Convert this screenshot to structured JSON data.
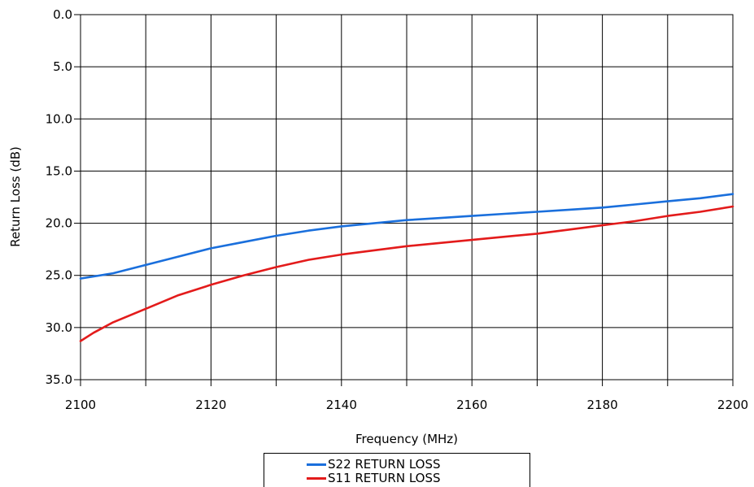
{
  "chart_data": {
    "type": "line",
    "title": "",
    "xlabel": "Frequency (MHz)",
    "ylabel": "Return Loss (dB)",
    "xlim": [
      2100,
      2200
    ],
    "ylim": [
      0,
      35
    ],
    "y_inverted": true,
    "x_ticks": [
      "2100",
      "2120",
      "2140",
      "2160",
      "2180",
      "2200"
    ],
    "y_ticks": [
      "0.0",
      "5.0",
      "10.0",
      "15.0",
      "20.0",
      "25.0",
      "30.0",
      "35.0"
    ],
    "grid": true,
    "legend_position": "bottom-center",
    "series": [
      {
        "name": "S22 RETURN LOSS",
        "color": "#1a6fdc",
        "x": [
          2100,
          2105,
          2110,
          2115,
          2120,
          2125,
          2130,
          2135,
          2140,
          2145,
          2150,
          2155,
          2160,
          2165,
          2170,
          2175,
          2180,
          2185,
          2190,
          2195,
          2200
        ],
        "y": [
          25.3,
          24.8,
          24.0,
          23.2,
          22.4,
          21.8,
          21.2,
          20.7,
          20.3,
          20.0,
          19.7,
          19.5,
          19.3,
          19.1,
          18.9,
          18.7,
          18.5,
          18.2,
          17.9,
          17.6,
          17.2
        ]
      },
      {
        "name": "S11 RETURN LOSS",
        "color": "#e31b1b",
        "x": [
          2100,
          2102,
          2105,
          2110,
          2115,
          2120,
          2125,
          2130,
          2135,
          2140,
          2145,
          2150,
          2155,
          2160,
          2165,
          2170,
          2175,
          2180,
          2185,
          2190,
          2195,
          2200
        ],
        "y": [
          31.3,
          30.5,
          29.5,
          28.2,
          26.9,
          25.9,
          25.0,
          24.2,
          23.5,
          23.0,
          22.6,
          22.2,
          21.9,
          21.6,
          21.3,
          21.0,
          20.6,
          20.2,
          19.8,
          19.3,
          18.9,
          18.4
        ]
      }
    ]
  }
}
